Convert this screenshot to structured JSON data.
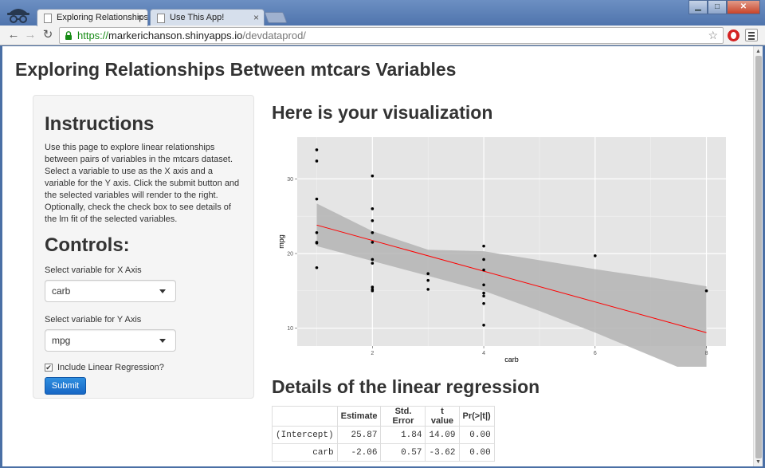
{
  "browser": {
    "tabs": [
      {
        "label": "Exploring Relationships Be",
        "active": true
      },
      {
        "label": "Use This App!",
        "active": false
      }
    ],
    "close_glyph": "×",
    "window_controls": {
      "minimize": "▁",
      "maximize": "□",
      "close": "✕"
    },
    "nav": {
      "back": "←",
      "forward": "→",
      "reload": "↻"
    },
    "url": {
      "scheme": "https://",
      "host": "markerichanson.shinyapps.io",
      "path": "/devdataprod/"
    },
    "icons": [
      "incognito-icon",
      "lock-icon",
      "star-icon",
      "opera-icon",
      "menu-icon"
    ]
  },
  "page": {
    "title": "Exploring Relationships Between mtcars Variables",
    "sidebar": {
      "instructions_heading": "Instructions",
      "instructions_text": "Use this page to explore linear relationships between pairs of variables in the mtcars dataset. Select a variable to use as the X axis and a variable for the Y axis. Click the submit button and the selected variables will render to the right. Optionally, check the check box to see details of the lm fit of the selected variables.",
      "controls_heading": "Controls:",
      "x_label": "Select variable for X Axis",
      "x_value": "carb",
      "y_label": "Select variable for Y Axis",
      "y_value": "mpg",
      "regression_label": "Include Linear Regression?",
      "regression_checked": true,
      "check_glyph": "✔",
      "submit_label": "Submit"
    },
    "viz_heading": "Here is your visualization",
    "details_heading": "Details of the linear regression",
    "table": {
      "headers": [
        "",
        "Estimate",
        "Std. Error",
        "t value",
        "Pr(>|t|)"
      ],
      "rows": [
        [
          "(Intercept)",
          "25.87",
          "1.84",
          "14.09",
          "0.00"
        ],
        [
          "carb",
          "-2.06",
          "0.57",
          "-3.62",
          "0.00"
        ]
      ]
    }
  },
  "chart_data": {
    "type": "scatter",
    "title": "",
    "xlabel": "carb",
    "ylabel": "mpg",
    "xlim": [
      0.65,
      8.35
    ],
    "ylim": [
      7.6,
      35.6
    ],
    "xticks": [
      2,
      4,
      6,
      8
    ],
    "yticks": [
      10,
      20,
      30
    ],
    "grid": true,
    "background": "#e5e5e5",
    "fit_color": "#ff0000",
    "band_color": "#b4b4b4",
    "fit": {
      "intercept": 25.87,
      "slope": -2.06
    },
    "band": {
      "x": [
        1,
        2,
        3,
        4,
        5,
        6,
        7,
        8
      ],
      "lower": [
        21.0,
        19.0,
        17.0,
        15.0,
        12.3,
        9.4,
        6.3,
        3.2
      ],
      "upper": [
        26.7,
        23.0,
        20.5,
        20.3,
        19.1,
        17.9,
        16.8,
        15.6
      ]
    },
    "points": [
      {
        "x": 1,
        "y": 33.9
      },
      {
        "x": 1,
        "y": 32.4
      },
      {
        "x": 1,
        "y": 27.3
      },
      {
        "x": 1,
        "y": 22.8
      },
      {
        "x": 1,
        "y": 21.5
      },
      {
        "x": 1,
        "y": 21.4
      },
      {
        "x": 1,
        "y": 18.1
      },
      {
        "x": 2,
        "y": 30.4
      },
      {
        "x": 2,
        "y": 26.0
      },
      {
        "x": 2,
        "y": 24.4
      },
      {
        "x": 2,
        "y": 22.8
      },
      {
        "x": 2,
        "y": 21.5
      },
      {
        "x": 2,
        "y": 19.2
      },
      {
        "x": 2,
        "y": 18.7
      },
      {
        "x": 2,
        "y": 15.5
      },
      {
        "x": 2,
        "y": 15.2
      },
      {
        "x": 2,
        "y": 15.0
      },
      {
        "x": 3,
        "y": 17.3
      },
      {
        "x": 3,
        "y": 16.4
      },
      {
        "x": 3,
        "y": 15.2
      },
      {
        "x": 4,
        "y": 21.0
      },
      {
        "x": 4,
        "y": 19.2
      },
      {
        "x": 4,
        "y": 17.8
      },
      {
        "x": 4,
        "y": 15.8
      },
      {
        "x": 4,
        "y": 14.7
      },
      {
        "x": 4,
        "y": 14.3
      },
      {
        "x": 4,
        "y": 13.3
      },
      {
        "x": 4,
        "y": 10.4
      },
      {
        "x": 6,
        "y": 19.7
      },
      {
        "x": 8,
        "y": 15.0
      }
    ]
  }
}
